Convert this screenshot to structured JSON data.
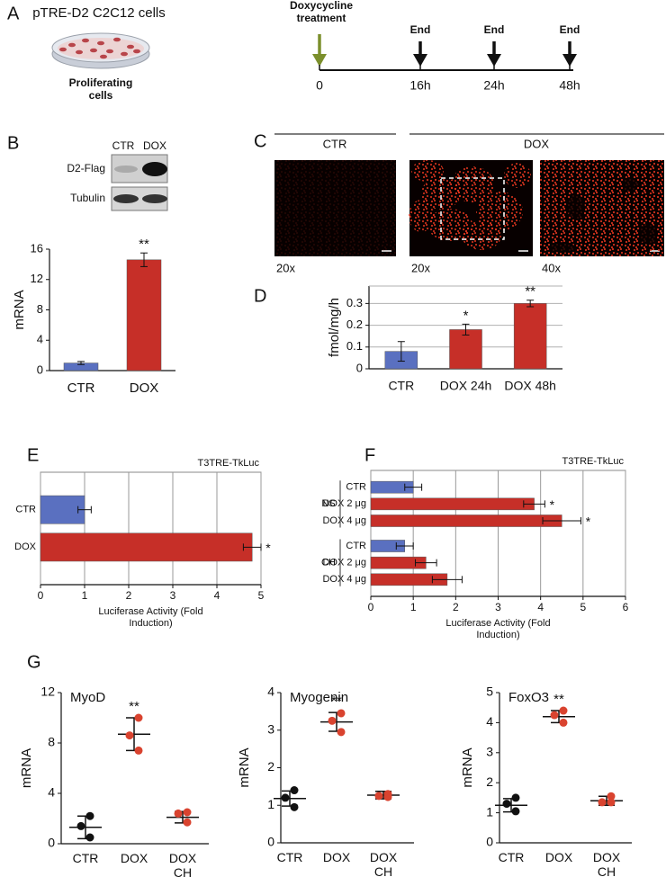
{
  "figure": {
    "panels": [
      "A",
      "B",
      "C",
      "D",
      "E",
      "F",
      "G"
    ],
    "a": {
      "cells": "pTRE-D2 C2C12 cells",
      "caption": "Proliferating cells",
      "treatment": "Doxycycline treatment",
      "end": [
        "End",
        "End",
        "End"
      ],
      "timeline": [
        "0",
        "16h",
        "24h",
        "48h"
      ]
    },
    "b": {
      "lanes": [
        "CTR",
        "DOX"
      ],
      "bands": [
        "D2-Flag",
        "Tubulin"
      ]
    },
    "c": {
      "groups": [
        "CTR",
        "DOX"
      ],
      "magnifications": [
        "20x",
        "20x",
        "40x"
      ]
    }
  },
  "chart_data": [
    {
      "type": "bar",
      "ylabel": "mRNA",
      "categories": [
        "CTR",
        "DOX"
      ],
      "values": [
        1,
        14.6
      ],
      "errors": [
        0.2,
        0.9
      ],
      "colors": [
        "#5a70c0",
        "#c62f28"
      ],
      "annotations": [
        null,
        "**"
      ],
      "ylim": [
        0,
        16
      ],
      "yticks": [
        0,
        4,
        8,
        12,
        16
      ],
      "grid": false
    },
    {
      "type": "bar",
      "ylabel": "fmol/mg/h",
      "categories": [
        "CTR",
        "DOX 24h",
        "DOX 48h"
      ],
      "values": [
        0.08,
        0.18,
        0.3
      ],
      "errors": [
        0.045,
        0.025,
        0.015
      ],
      "colors": [
        "#5a70c0",
        "#c62f28",
        "#c62f28"
      ],
      "annotations": [
        null,
        "*",
        "**"
      ],
      "ylim": [
        0,
        0.38
      ],
      "yticks": [
        0,
        0.1,
        0.2,
        0.3
      ],
      "grid": true
    },
    {
      "type": "hbar",
      "subtitle": "T3TRE-TkLuc",
      "xlabel": "Luciferase Activity (Fold Induction)",
      "groups": [
        {
          "categories": [
            "CTR",
            "DOX"
          ],
          "values": [
            1,
            4.8
          ],
          "errors": [
            0.15,
            0.2
          ],
          "colors": [
            "#5a70c0",
            "#c62f28"
          ],
          "annotations": [
            null,
            "*"
          ]
        }
      ],
      "xlim": [
        0,
        5
      ],
      "xticks": [
        0,
        1,
        2,
        3,
        4,
        5
      ],
      "grid": true
    },
    {
      "type": "hbar",
      "subtitle": "T3TRE-TkLuc",
      "xlabel": "Luciferase Activity (Fold Induction)",
      "groups": [
        {
          "name": "NS",
          "categories": [
            "CTR",
            "DOX 2 μg",
            "DOX 4 μg"
          ],
          "values": [
            1,
            3.85,
            4.5
          ],
          "errors": [
            0.2,
            0.25,
            0.45
          ],
          "colors": [
            "#5a70c0",
            "#c62f28",
            "#c62f28"
          ],
          "annotations": [
            null,
            "*",
            "*"
          ]
        },
        {
          "name": "CH",
          "categories": [
            "CTR",
            "DOX 2 μg",
            "DOX 4 μg"
          ],
          "values": [
            0.8,
            1.3,
            1.8
          ],
          "errors": [
            0.2,
            0.25,
            0.35
          ],
          "colors": [
            "#5a70c0",
            "#c62f28",
            "#c62f28"
          ]
        }
      ],
      "xlim": [
        0,
        6
      ],
      "xticks": [
        0,
        1,
        2,
        3,
        4,
        5,
        6
      ],
      "grid": true
    },
    {
      "type": "dot",
      "title": "MyoD",
      "ylabel": "mRNA",
      "categories": [
        "CTR",
        "DOX",
        "DOX CH"
      ],
      "points": [
        [
          2.2,
          1.4,
          0.5
        ],
        [
          10,
          8.6,
          7.4
        ],
        [
          2.5,
          2.4,
          1.7
        ]
      ],
      "means": [
        1.3,
        8.7,
        2.1
      ],
      "errors": [
        0.9,
        1.3,
        0.45
      ],
      "colors": [
        "#111111",
        "#d9432f",
        "#d9432f"
      ],
      "annotations": [
        null,
        "**",
        null
      ],
      "ylim": [
        0,
        12
      ],
      "yticks": [
        0,
        4,
        8,
        12
      ]
    },
    {
      "type": "dot",
      "title": "Myogenin",
      "ylabel": "mRNA",
      "categories": [
        "CTR",
        "DOX",
        "DOX CH"
      ],
      "points": [
        [
          1.4,
          1.2,
          0.95
        ],
        [
          3.45,
          3.25,
          2.95
        ],
        [
          1.3,
          1.25,
          1.22
        ]
      ],
      "means": [
        1.18,
        3.22,
        1.27
      ],
      "errors": [
        0.2,
        0.25,
        0.1
      ],
      "colors": [
        "#111111",
        "#d9432f",
        "#d9432f"
      ],
      "annotations": [
        null,
        "**",
        null
      ],
      "ylim": [
        0,
        4
      ],
      "yticks": [
        0,
        1,
        2,
        3,
        4
      ]
    },
    {
      "type": "dot",
      "title": "FoxO3",
      "ylabel": "mRNA",
      "categories": [
        "CTR",
        "DOX",
        "DOX CH"
      ],
      "points": [
        [
          1.5,
          1.3,
          1.05
        ],
        [
          4.4,
          4.25,
          4.0
        ],
        [
          1.55,
          1.35,
          1.35
        ]
      ],
      "means": [
        1.25,
        4.2,
        1.4
      ],
      "errors": [
        0.22,
        0.2,
        0.15
      ],
      "colors": [
        "#111111",
        "#d9432f",
        "#d9432f"
      ],
      "annotations": [
        null,
        "**",
        null
      ],
      "ylim": [
        0,
        5
      ],
      "yticks": [
        0,
        1,
        2,
        3,
        4,
        5
      ]
    }
  ]
}
